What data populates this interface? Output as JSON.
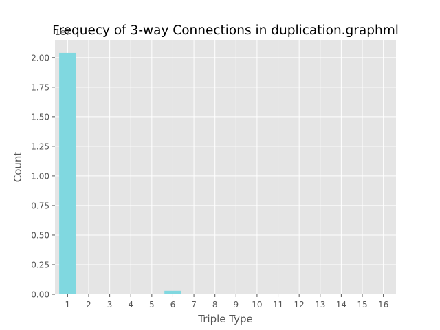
{
  "chart_data": {
    "type": "bar",
    "title": "Frequecy of 3-way Connections in duplication.graphml",
    "xlabel": "Triple Type",
    "ylabel": "Count",
    "offset_text": "1e7",
    "categories": [
      "1",
      "2",
      "3",
      "4",
      "5",
      "6",
      "7",
      "8",
      "9",
      "10",
      "11",
      "12",
      "13",
      "14",
      "15",
      "16"
    ],
    "values": [
      20400000,
      0,
      0,
      0,
      0,
      300000,
      0,
      0,
      0,
      0,
      0,
      0,
      0,
      0,
      0,
      0
    ],
    "ylim": [
      0,
      21500000
    ],
    "yticks": [
      0,
      2500000,
      5000000,
      7500000,
      10000000,
      12500000,
      15000000,
      17500000,
      20000000
    ],
    "ytick_labels": [
      "0.00",
      "0.25",
      "0.50",
      "0.75",
      "1.00",
      "1.25",
      "1.50",
      "1.75",
      "2.00"
    ],
    "grid": true,
    "colors": {
      "bar": "#80d8e0",
      "plot_background": "#e5e5e5",
      "grid": "#ffffff",
      "text": "#555555",
      "title": "#000000"
    }
  }
}
